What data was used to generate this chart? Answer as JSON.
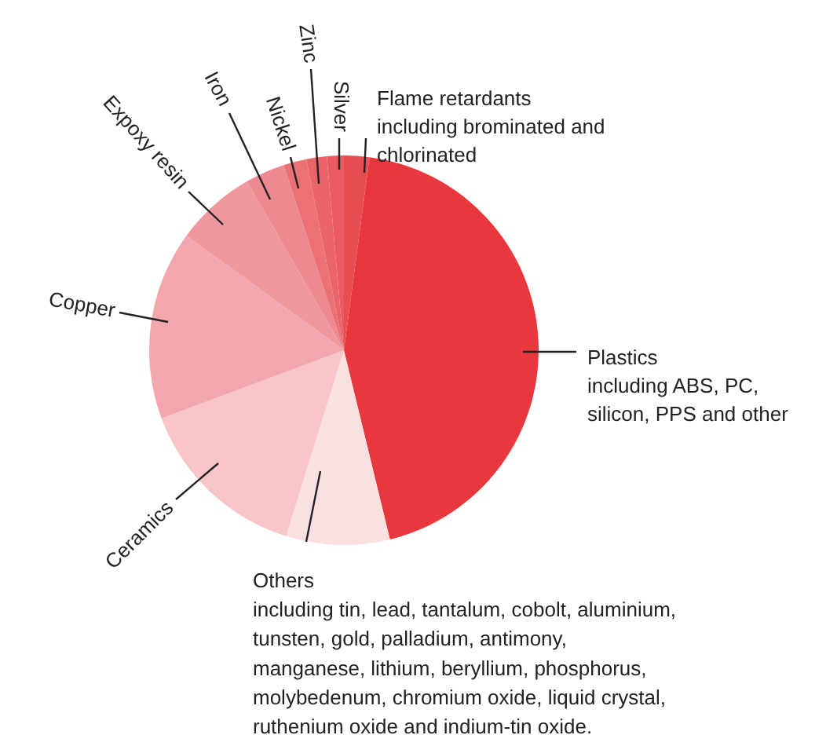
{
  "chart_data": {
    "type": "pie",
    "categories": [
      "Flame retardants\nincluding brominated and\nchlorinated",
      "Plastics\nincluding ABS, PC,\nsilicon, PPS and other",
      "Others\nincluding tin, lead, tantalum, cobolt, aluminium,\ntunsten, gold, palladium, antimony,\nmanganese, lithium, beryllium, phosphorus,\nmolybedenum, chromium oxide, liquid crystal,\nruthenium oxide and indium-tin oxide.",
      "Ceramics",
      "Copper",
      "Expoxy resin",
      "Iron",
      "Nickel",
      "Zinc",
      "Silver"
    ],
    "values": [
      2.1,
      44.1,
      8.6,
      14.5,
      15.7,
      6.7,
      3.3,
      1.9,
      1.7,
      1.4
    ],
    "colors": [
      "#e84d53",
      "#e8383d",
      "#fbe0e2",
      "#f8c5c9",
      "#f2a7ad",
      "#ee989e",
      "#ec8a90",
      "#eb7177",
      "#ea6369",
      "#ea5a60"
    ]
  }
}
